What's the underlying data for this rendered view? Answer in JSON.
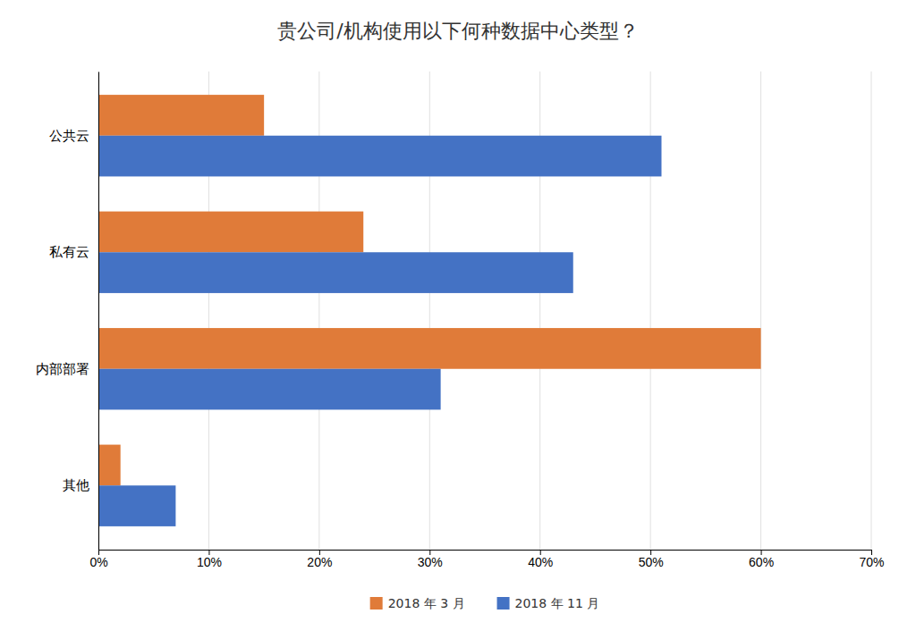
{
  "chart_data": {
    "type": "bar",
    "orientation": "horizontal",
    "title": "贵公司/机构使用以下何种数据中心类型？",
    "categories": [
      "公共云",
      "私有云",
      "内部部署",
      "其他"
    ],
    "series": [
      {
        "name": "2018 年 3 月",
        "color": "#E07B39",
        "values": [
          0.15,
          0.24,
          0.6,
          0.02
        ]
      },
      {
        "name": "2018 年 11 月",
        "color": "#4472C4",
        "values": [
          0.51,
          0.43,
          0.31,
          0.07
        ]
      }
    ],
    "xlim": [
      0,
      0.7
    ],
    "xticks": [
      {
        "value": 0,
        "label": "0%"
      },
      {
        "value": 0.1,
        "label": "10%"
      },
      {
        "value": 0.2,
        "label": "20%"
      },
      {
        "value": 0.3,
        "label": "30%"
      },
      {
        "value": 0.4,
        "label": "40%"
      },
      {
        "value": 0.5,
        "label": "50%"
      },
      {
        "value": 0.6,
        "label": "60%"
      },
      {
        "value": 0.7,
        "label": "70%"
      }
    ],
    "grid": true,
    "legend": "bottom"
  }
}
